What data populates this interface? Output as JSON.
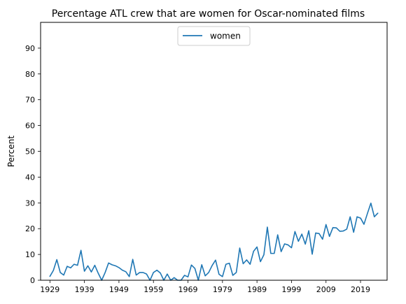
{
  "chart_data": {
    "type": "line",
    "title": "Percentage ATL crew that are women for Oscar-nominated films",
    "xlabel": "",
    "ylabel": "Percent",
    "xlim": [
      1926.3,
      2026.7
    ],
    "ylim": [
      0,
      100
    ],
    "x_ticks": [
      1929,
      1939,
      1949,
      1959,
      1969,
      1979,
      1989,
      1999,
      2009,
      2019
    ],
    "y_ticks": [
      0,
      10,
      20,
      30,
      40,
      50,
      60,
      70,
      80,
      90
    ],
    "legend_position": "top-center",
    "series": [
      {
        "name": "women",
        "color": "#1f77b4",
        "x": [
          1929,
          1930,
          1931,
          1932,
          1933,
          1934,
          1935,
          1936,
          1937,
          1938,
          1939,
          1940,
          1941,
          1942,
          1943,
          1944,
          1945,
          1946,
          1947,
          1948,
          1949,
          1950,
          1951,
          1952,
          1953,
          1954,
          1955,
          1956,
          1957,
          1958,
          1959,
          1960,
          1961,
          1962,
          1963,
          1964,
          1965,
          1966,
          1967,
          1968,
          1969,
          1970,
          1971,
          1972,
          1973,
          1974,
          1975,
          1976,
          1977,
          1978,
          1979,
          1980,
          1981,
          1982,
          1983,
          1984,
          1985,
          1986,
          1987,
          1988,
          1989,
          1990,
          1991,
          1992,
          1993,
          1994,
          1995,
          1996,
          1997,
          1998,
          1999,
          2000,
          2001,
          2002,
          2003,
          2004,
          2005,
          2006,
          2007,
          2008,
          2009,
          2010,
          2011,
          2012,
          2013,
          2014,
          2015,
          2016,
          2017,
          2018,
          2019,
          2020,
          2021,
          2022,
          2023,
          2024
        ],
        "values": [
          1.5,
          3.8,
          8,
          3,
          2,
          5.4,
          4.8,
          6.2,
          5.8,
          11.6,
          3.5,
          5.6,
          3.2,
          5.8,
          2.7,
          0,
          3,
          6.7,
          6,
          5.6,
          4.9,
          3.9,
          3.3,
          1.4,
          8.1,
          2,
          3,
          3,
          2.4,
          0,
          3,
          3.9,
          2.8,
          0,
          2.4,
          0,
          1,
          0,
          0,
          1.9,
          1.3,
          5.9,
          4.6,
          0,
          6,
          1.7,
          3,
          5.7,
          7.8,
          2.3,
          1.4,
          6.2,
          6.6,
          1.9,
          3,
          12.5,
          6.4,
          7.9,
          6.2,
          11.2,
          12.9,
          7.2,
          9.9,
          20.6,
          10.4,
          10.4,
          17.6,
          11.1,
          14.1,
          13.7,
          12.6,
          18.9,
          15.1,
          17.9,
          14,
          19.2,
          10.1,
          18.3,
          18.1,
          15.9,
          21.6,
          17,
          20.4,
          20.3,
          19,
          19.1,
          19.8,
          24.6,
          18.6,
          24.6,
          24.1,
          21.7,
          25.9,
          29.9,
          24.6,
          26
        ]
      }
    ]
  }
}
